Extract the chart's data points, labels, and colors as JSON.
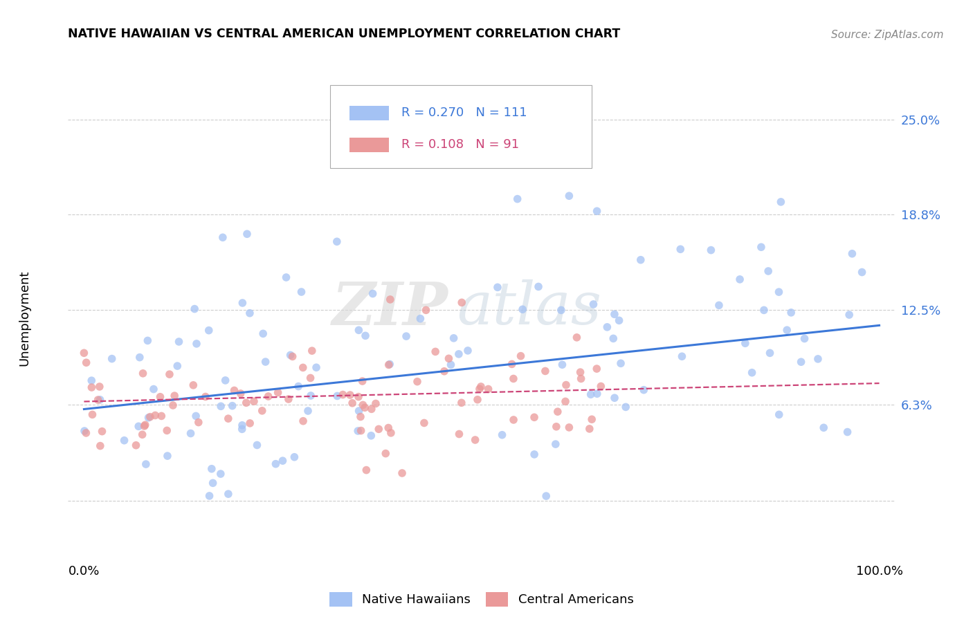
{
  "title": "NATIVE HAWAIIAN VS CENTRAL AMERICAN UNEMPLOYMENT CORRELATION CHART",
  "source": "Source: ZipAtlas.com",
  "ylabel": "Unemployment",
  "yticks": [
    0.0,
    0.063,
    0.125,
    0.188,
    0.25
  ],
  "ytick_labels": [
    "",
    "6.3%",
    "12.5%",
    "18.8%",
    "25.0%"
  ],
  "xlim": [
    -0.02,
    1.02
  ],
  "ylim": [
    -0.04,
    0.28
  ],
  "blue_color": "#a4c2f4",
  "pink_color": "#ea9999",
  "trend_blue": "#3c78d8",
  "trend_pink": "#cc4477",
  "blue_R": 0.27,
  "blue_N": 111,
  "pink_R": 0.108,
  "pink_N": 91,
  "blue_intercept": 0.06,
  "blue_slope": 0.055,
  "pink_intercept": 0.065,
  "pink_slope": 0.012,
  "watermark_zip": "ZIP",
  "watermark_atlas": "atlas",
  "grid_color": "#cccccc",
  "background": "#ffffff",
  "label_color": "#3c78d8",
  "seed_blue": 7,
  "seed_pink": 13
}
